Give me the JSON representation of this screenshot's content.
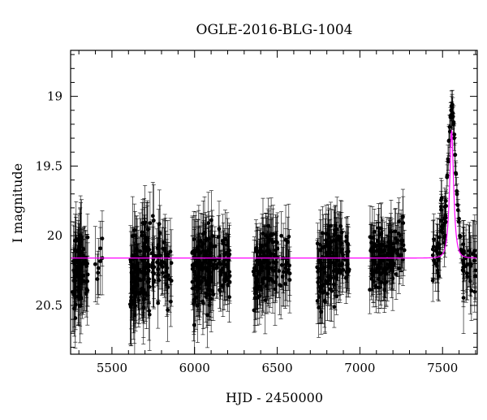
{
  "chart_data": {
    "type": "scatter",
    "title": "OGLE-2016-BLG-1004",
    "xlabel": "HJD - 2450000",
    "ylabel": "I magnitude",
    "xlim": [
      5250,
      7710
    ],
    "ylim": [
      20.85,
      18.67
    ],
    "y_inverted": true,
    "x_ticks": [
      5500,
      6000,
      6500,
      7000,
      7500
    ],
    "y_ticks": [
      19,
      19.5,
      20,
      20.5
    ],
    "x_tick_labels": [
      "5500",
      "6000",
      "6500",
      "7000",
      "7500"
    ],
    "y_tick_labels": [
      "19",
      "19.5",
      "20",
      "20.5"
    ],
    "grid": false,
    "colors": {
      "data": "#000000",
      "model": "#ff00ff",
      "axes": "#000000"
    },
    "series": [
      {
        "kind": "data-with-errorbars",
        "observing_seasons": [
          {
            "x_range": [
              5262,
              5318
            ],
            "mean_mag": 20.25,
            "scatter": 0.17,
            "error": 0.22,
            "n": 60
          },
          {
            "x_range": [
              5318,
              5355
            ],
            "mean_mag": 20.25,
            "scatter": 0.16,
            "error": 0.22,
            "n": 22
          },
          {
            "x_range": [
              5395,
              5450
            ],
            "mean_mag": 20.2,
            "scatter": 0.13,
            "error": 0.22,
            "n": 8
          },
          {
            "x_range": [
              5610,
              5640
            ],
            "mean_mag": 20.3,
            "scatter": 0.2,
            "error": 0.24,
            "n": 30
          },
          {
            "x_range": [
              5640,
              5730
            ],
            "mean_mag": 20.25,
            "scatter": 0.19,
            "error": 0.22,
            "n": 90
          },
          {
            "x_range": [
              5730,
              5860
            ],
            "mean_mag": 20.2,
            "scatter": 0.17,
            "error": 0.2,
            "n": 55
          },
          {
            "x_range": [
              5985,
              6020
            ],
            "mean_mag": 20.3,
            "scatter": 0.2,
            "error": 0.22,
            "n": 35
          },
          {
            "x_range": [
              6020,
              6110
            ],
            "mean_mag": 20.22,
            "scatter": 0.18,
            "error": 0.2,
            "n": 90
          },
          {
            "x_range": [
              6110,
              6215
            ],
            "mean_mag": 20.18,
            "scatter": 0.15,
            "error": 0.18,
            "n": 55
          },
          {
            "x_range": [
              6355,
              6395
            ],
            "mean_mag": 20.25,
            "scatter": 0.16,
            "error": 0.2,
            "n": 30
          },
          {
            "x_range": [
              6395,
              6480
            ],
            "mean_mag": 20.2,
            "scatter": 0.15,
            "error": 0.2,
            "n": 65
          },
          {
            "x_range": [
              6480,
              6580
            ],
            "mean_mag": 20.2,
            "scatter": 0.14,
            "error": 0.2,
            "n": 35
          },
          {
            "x_range": [
              6740,
              6790
            ],
            "mean_mag": 20.25,
            "scatter": 0.15,
            "error": 0.2,
            "n": 35
          },
          {
            "x_range": [
              6790,
              6880
            ],
            "mean_mag": 20.18,
            "scatter": 0.14,
            "error": 0.18,
            "n": 75
          },
          {
            "x_range": [
              6880,
              6935
            ],
            "mean_mag": 20.15,
            "scatter": 0.13,
            "error": 0.18,
            "n": 30
          },
          {
            "x_range": [
              7060,
              7110
            ],
            "mean_mag": 20.2,
            "scatter": 0.14,
            "error": 0.18,
            "n": 35
          },
          {
            "x_range": [
              7110,
              7200
            ],
            "mean_mag": 20.15,
            "scatter": 0.13,
            "error": 0.18,
            "n": 70
          },
          {
            "x_range": [
              7200,
              7270
            ],
            "mean_mag": 20.1,
            "scatter": 0.12,
            "error": 0.17,
            "n": 30
          },
          {
            "x_range": [
              7440,
              7490
            ],
            "mean_mag": 20.15,
            "scatter": 0.12,
            "error": 0.16,
            "n": 25
          },
          {
            "x_range": [
              7490,
              7520
            ],
            "mean_mag": 19.9,
            "scatter": 0.1,
            "error": 0.14,
            "n": 20
          },
          {
            "x_range": [
              7620,
              7700
            ],
            "mean_mag": 20.25,
            "scatter": 0.15,
            "error": 0.2,
            "n": 35
          }
        ],
        "peak_points": [
          {
            "x": 7520,
            "y": 19.75
          },
          {
            "x": 7527,
            "y": 19.58
          },
          {
            "x": 7533,
            "y": 19.45
          },
          {
            "x": 7538,
            "y": 19.32
          },
          {
            "x": 7543,
            "y": 19.22
          },
          {
            "x": 7548,
            "y": 19.15
          },
          {
            "x": 7552,
            "y": 19.1
          },
          {
            "x": 7555,
            "y": 19.13
          },
          {
            "x": 7558,
            "y": 19.08
          },
          {
            "x": 7562,
            "y": 19.12
          },
          {
            "x": 7566,
            "y": 19.2
          },
          {
            "x": 7570,
            "y": 19.3
          },
          {
            "x": 7575,
            "y": 19.42
          },
          {
            "x": 7580,
            "y": 19.55
          },
          {
            "x": 7586,
            "y": 19.68
          },
          {
            "x": 7592,
            "y": 19.78
          },
          {
            "x": 7598,
            "y": 19.9
          },
          {
            "x": 7605,
            "y": 20.0
          },
          {
            "x": 7612,
            "y": 20.1
          }
        ]
      },
      {
        "kind": "model",
        "shape": "microlensing (Paczynski)",
        "baseline_mag": 20.16,
        "peak_mag": 19.25,
        "t0": 7555,
        "tE": 21.5
      }
    ]
  }
}
